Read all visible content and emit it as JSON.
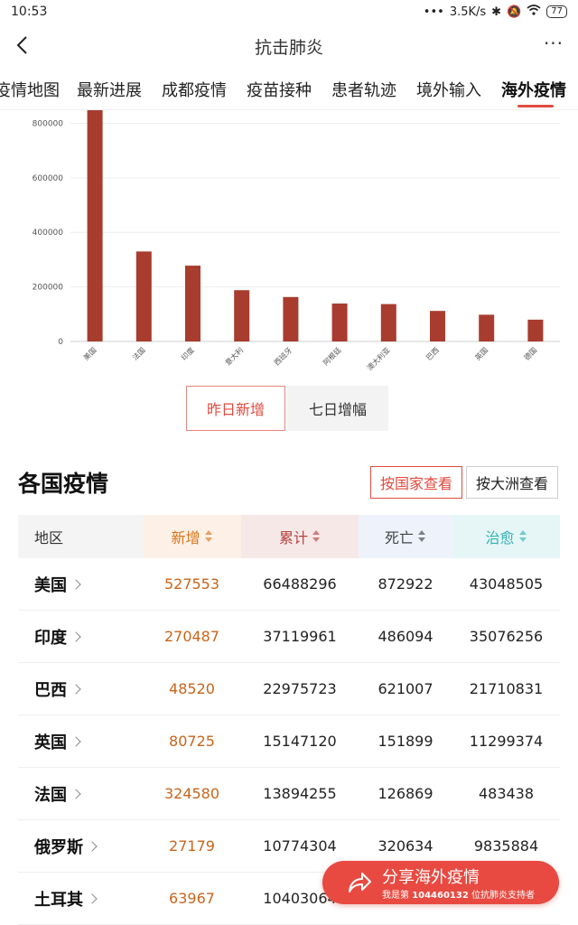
{
  "status": {
    "time": "10:53",
    "net_speed": "3.5K/s",
    "battery": "77"
  },
  "header": {
    "title": "抗击肺炎",
    "more_label": "···"
  },
  "tabs": [
    {
      "label": "疫情地图"
    },
    {
      "label": "最新进展"
    },
    {
      "label": "成都疫情"
    },
    {
      "label": "疫苗接种"
    },
    {
      "label": "患者轨迹"
    },
    {
      "label": "境外输入"
    },
    {
      "label": "海外疫情",
      "active": true
    }
  ],
  "colors": {
    "accent": "#e04b3f",
    "bar": "#a83c2e"
  },
  "chart_data": {
    "type": "bar",
    "categories": [
      "美国",
      "法国",
      "印度",
      "意大利",
      "西班牙",
      "阿根廷",
      "澳大利亚",
      "巴西",
      "英国",
      "德国"
    ],
    "values": [
      848000,
      330000,
      278000,
      188000,
      163000,
      139000,
      137000,
      112000,
      98000,
      80000
    ],
    "yticks": [
      0,
      200000,
      400000,
      600000,
      800000
    ],
    "ylim": [
      0,
      848000
    ],
    "grid": true
  },
  "chart_toggle": {
    "yesterday": "昨日新增",
    "seven_day": "七日增幅"
  },
  "section": {
    "title": "各国疫情",
    "by_country": "按国家查看",
    "by_continent": "按大洲查看"
  },
  "table": {
    "headers": {
      "region": "地区",
      "add": "新增",
      "total": "累计",
      "death": "死亡",
      "cure": "治愈"
    },
    "rows": [
      {
        "region": "美国",
        "add": "527553",
        "total": "66488296",
        "death": "872922",
        "cure": "43048505"
      },
      {
        "region": "印度",
        "add": "270487",
        "total": "37119961",
        "death": "486094",
        "cure": "35076256"
      },
      {
        "region": "巴西",
        "add": "48520",
        "total": "22975723",
        "death": "621007",
        "cure": "21710831"
      },
      {
        "region": "英国",
        "add": "80725",
        "total": "15147120",
        "death": "151899",
        "cure": "11299374"
      },
      {
        "region": "法国",
        "add": "324580",
        "total": "13894255",
        "death": "126869",
        "cure": "483438"
      },
      {
        "region": "俄罗斯",
        "add": "27179",
        "total": "10774304",
        "death": "320634",
        "cure": "9835884"
      },
      {
        "region": "土耳其",
        "add": "63967",
        "total": "10403064",
        "death": "",
        "cure": ""
      }
    ]
  },
  "share": {
    "label": "分享海外疫情",
    "sub_prefix": "我是第",
    "sub_count": "104460132",
    "sub_suffix": "位抗肺炎支持者"
  }
}
